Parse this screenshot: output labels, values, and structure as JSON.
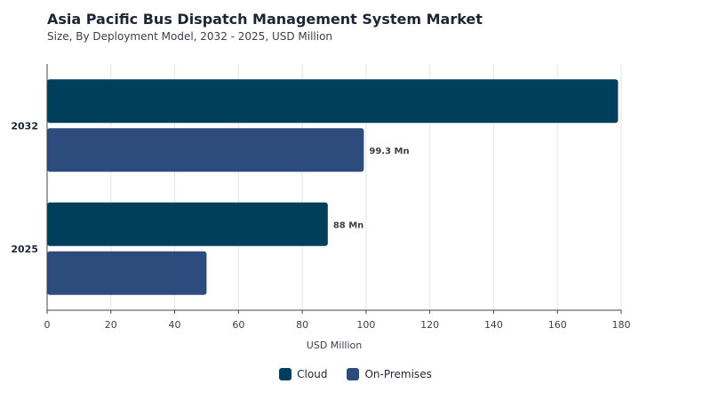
{
  "title": "Asia Pacific Bus Dispatch Management System Market",
  "subtitle": "Size, By Deployment Model, 2032 - 2025, USD Million",
  "chart_data": {
    "type": "bar",
    "orientation": "horizontal",
    "categories": [
      "2032",
      "2025"
    ],
    "series": [
      {
        "name": "Cloud",
        "color": "#003f5c",
        "values": [
          179,
          88
        ]
      },
      {
        "name": "On-Premises",
        "color": "#2e4b7d",
        "values": [
          99.3,
          50
        ]
      }
    ],
    "data_labels": [
      {
        "series": "On-Premises",
        "category": "2032",
        "text": "99.3 Mn"
      },
      {
        "series": "Cloud",
        "category": "2025",
        "text": "88 Mn"
      }
    ],
    "xlabel": "USD Million",
    "ylabel": "",
    "xlim": [
      0,
      180
    ],
    "xticks": [
      0,
      20,
      40,
      60,
      80,
      100,
      120,
      140,
      160,
      180
    ],
    "grid": "vertical",
    "legend_position": "bottom-center"
  }
}
